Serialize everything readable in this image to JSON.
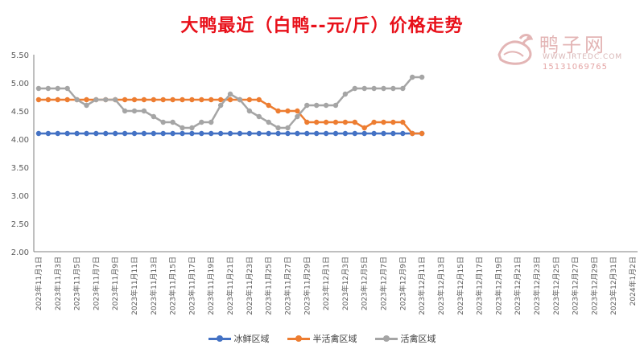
{
  "chart_data": {
    "type": "line",
    "title": "大鸭最近（白鸭--元/斤）价格走势",
    "xlabel": "",
    "ylabel": "",
    "ylim": [
      2.0,
      5.5
    ],
    "yticks": [
      "2.00",
      "2.50",
      "3.00",
      "3.50",
      "4.00",
      "4.50",
      "5.00",
      "5.50"
    ],
    "grid": false,
    "legend_position": "bottom",
    "x_tick_labels": [
      "2023年11月1日",
      "2023年11月3日",
      "2023年11月5日",
      "2023年11月7日",
      "2023年11月9日",
      "2023年11月11日",
      "2023年11月13日",
      "2023年11月15日",
      "2023年11月17日",
      "2023年11月19日",
      "2023年11月21日",
      "2023年11月23日",
      "2023年11月25日",
      "2023年11月27日",
      "2023年11月29日",
      "2023年12月1日",
      "2023年12月3日",
      "2023年12月5日",
      "2023年12月7日",
      "2023年12月9日",
      "2023年12月11日",
      "2023年12月13日",
      "2023年12月15日",
      "2023年12月17日",
      "2023年12月19日",
      "2023年12月21日",
      "2023年12月23日",
      "2023年12月25日",
      "2023年12月27日",
      "2023年12月29日",
      "2023年12月31日",
      "2024年1月2日"
    ],
    "x_start": "2023-11-01",
    "x_end": "2024-01-02",
    "series": [
      {
        "name": "冰鲜区域",
        "color": "#4472c4",
        "dates": [
          "2023-11-01",
          "2023-11-02",
          "2023-11-03",
          "2023-11-04",
          "2023-11-05",
          "2023-11-06",
          "2023-11-07",
          "2023-11-08",
          "2023-11-09",
          "2023-11-10",
          "2023-11-11",
          "2023-11-12",
          "2023-11-13",
          "2023-11-14",
          "2023-11-15",
          "2023-11-16",
          "2023-11-17",
          "2023-11-18",
          "2023-11-19",
          "2023-11-20",
          "2023-11-21",
          "2023-11-22",
          "2023-11-23",
          "2023-11-24",
          "2023-11-25",
          "2023-11-26",
          "2023-11-27",
          "2023-11-28",
          "2023-11-29",
          "2023-11-30",
          "2023-12-01",
          "2023-12-02",
          "2023-12-03",
          "2023-12-04",
          "2023-12-05",
          "2023-12-06",
          "2023-12-07",
          "2023-12-08",
          "2023-12-09",
          "2023-12-10",
          "2023-12-11"
        ],
        "values": [
          4.1,
          4.1,
          4.1,
          4.1,
          4.1,
          4.1,
          4.1,
          4.1,
          4.1,
          4.1,
          4.1,
          4.1,
          4.1,
          4.1,
          4.1,
          4.1,
          4.1,
          4.1,
          4.1,
          4.1,
          4.1,
          4.1,
          4.1,
          4.1,
          4.1,
          4.1,
          4.1,
          4.1,
          4.1,
          4.1,
          4.1,
          4.1,
          4.1,
          4.1,
          4.1,
          4.1,
          4.1,
          4.1,
          4.1,
          4.1,
          4.1
        ]
      },
      {
        "name": "半活禽区域",
        "color": "#ed7d31",
        "dates": [
          "2023-11-01",
          "2023-11-02",
          "2023-11-03",
          "2023-11-04",
          "2023-11-05",
          "2023-11-06",
          "2023-11-07",
          "2023-11-08",
          "2023-11-09",
          "2023-11-10",
          "2023-11-11",
          "2023-11-12",
          "2023-11-13",
          "2023-11-14",
          "2023-11-15",
          "2023-11-16",
          "2023-11-17",
          "2023-11-18",
          "2023-11-19",
          "2023-11-20",
          "2023-11-21",
          "2023-11-22",
          "2023-11-23",
          "2023-11-24",
          "2023-11-25",
          "2023-11-26",
          "2023-11-27",
          "2023-11-28",
          "2023-11-29",
          "2023-11-30",
          "2023-12-01",
          "2023-12-02",
          "2023-12-03",
          "2023-12-04",
          "2023-12-05",
          "2023-12-06",
          "2023-12-07",
          "2023-12-08",
          "2023-12-09",
          "2023-12-10",
          "2023-12-11"
        ],
        "values": [
          4.7,
          4.7,
          4.7,
          4.7,
          4.7,
          4.7,
          4.7,
          4.7,
          4.7,
          4.7,
          4.7,
          4.7,
          4.7,
          4.7,
          4.7,
          4.7,
          4.7,
          4.7,
          4.7,
          4.7,
          4.7,
          4.7,
          4.7,
          4.7,
          4.6,
          4.5,
          4.5,
          4.5,
          4.3,
          4.3,
          4.3,
          4.3,
          4.3,
          4.3,
          4.2,
          4.3,
          4.3,
          4.3,
          4.3,
          4.1,
          4.1
        ]
      },
      {
        "name": "活禽区域",
        "color": "#a5a5a5",
        "dates": [
          "2023-11-01",
          "2023-11-02",
          "2023-11-03",
          "2023-11-04",
          "2023-11-05",
          "2023-11-06",
          "2023-11-07",
          "2023-11-08",
          "2023-11-09",
          "2023-11-10",
          "2023-11-11",
          "2023-11-12",
          "2023-11-13",
          "2023-11-14",
          "2023-11-15",
          "2023-11-16",
          "2023-11-17",
          "2023-11-18",
          "2023-11-19",
          "2023-11-20",
          "2023-11-21",
          "2023-11-22",
          "2023-11-23",
          "2023-11-24",
          "2023-11-25",
          "2023-11-26",
          "2023-11-27",
          "2023-11-28",
          "2023-11-29",
          "2023-11-30",
          "2023-12-01",
          "2023-12-02",
          "2023-12-03",
          "2023-12-04",
          "2023-12-05",
          "2023-12-06",
          "2023-12-07",
          "2023-12-08",
          "2023-12-09",
          "2023-12-10",
          "2023-12-11"
        ],
        "values": [
          4.9,
          4.9,
          4.9,
          4.9,
          4.7,
          4.6,
          4.7,
          4.7,
          4.7,
          4.5,
          4.5,
          4.5,
          4.4,
          4.3,
          4.3,
          4.2,
          4.2,
          4.3,
          4.3,
          4.6,
          4.8,
          4.7,
          4.5,
          4.4,
          4.3,
          4.2,
          4.2,
          4.4,
          4.6,
          4.6,
          4.6,
          4.6,
          4.8,
          4.9,
          4.9,
          4.9,
          4.9,
          4.9,
          4.9,
          5.1,
          5.1
        ]
      }
    ]
  },
  "watermark": {
    "name": "鸭子网",
    "site": "WWW.IRTEDC.COM",
    "phone": "15131069765",
    "color": "#e3b5b5"
  },
  "colors": {
    "title": "#e8101a",
    "axis": "#7f7f7f",
    "tick_text": "#595959"
  }
}
